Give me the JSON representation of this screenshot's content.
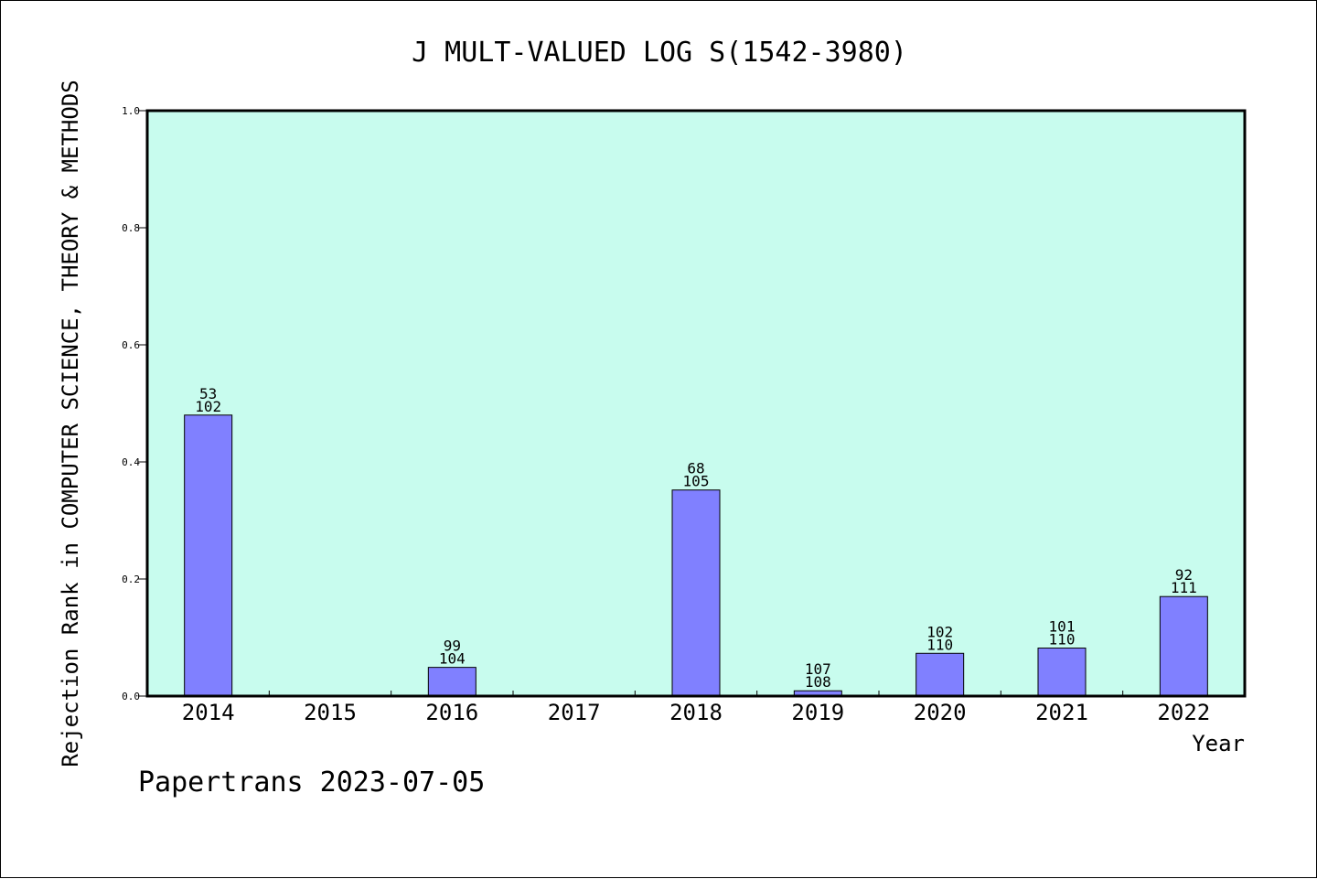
{
  "chart_data": {
    "type": "bar",
    "title": "J MULT-VALUED LOG S(1542-3980)",
    "xlabel": "Year",
    "ylabel": "Rejection Rank in COMPUTER SCIENCE, THEORY & METHODS",
    "footer": "Papertrans 2023-07-05",
    "categories": [
      "2014",
      "2015",
      "2016",
      "2017",
      "2018",
      "2019",
      "2020",
      "2021",
      "2022"
    ],
    "values": [
      0.48,
      null,
      0.049,
      null,
      0.352,
      0.009,
      0.073,
      0.082,
      0.17
    ],
    "label_top": [
      "53",
      "",
      "99",
      "",
      "68",
      "107",
      "102",
      "101",
      "92"
    ],
    "label_bottom": [
      "102",
      "",
      "104",
      "",
      "105",
      "108",
      "110",
      "110",
      "111"
    ],
    "ylim": [
      0,
      1.0
    ],
    "yticks": [
      "0.0",
      "0.2",
      "0.4",
      "0.6",
      "0.8",
      "1.0"
    ],
    "grid": false,
    "colors": {
      "plot_background": "#c8fcee",
      "bar_fill": "#8080ff",
      "bar_stroke": "#000000",
      "axis": "#000000",
      "text": "#000000"
    }
  }
}
